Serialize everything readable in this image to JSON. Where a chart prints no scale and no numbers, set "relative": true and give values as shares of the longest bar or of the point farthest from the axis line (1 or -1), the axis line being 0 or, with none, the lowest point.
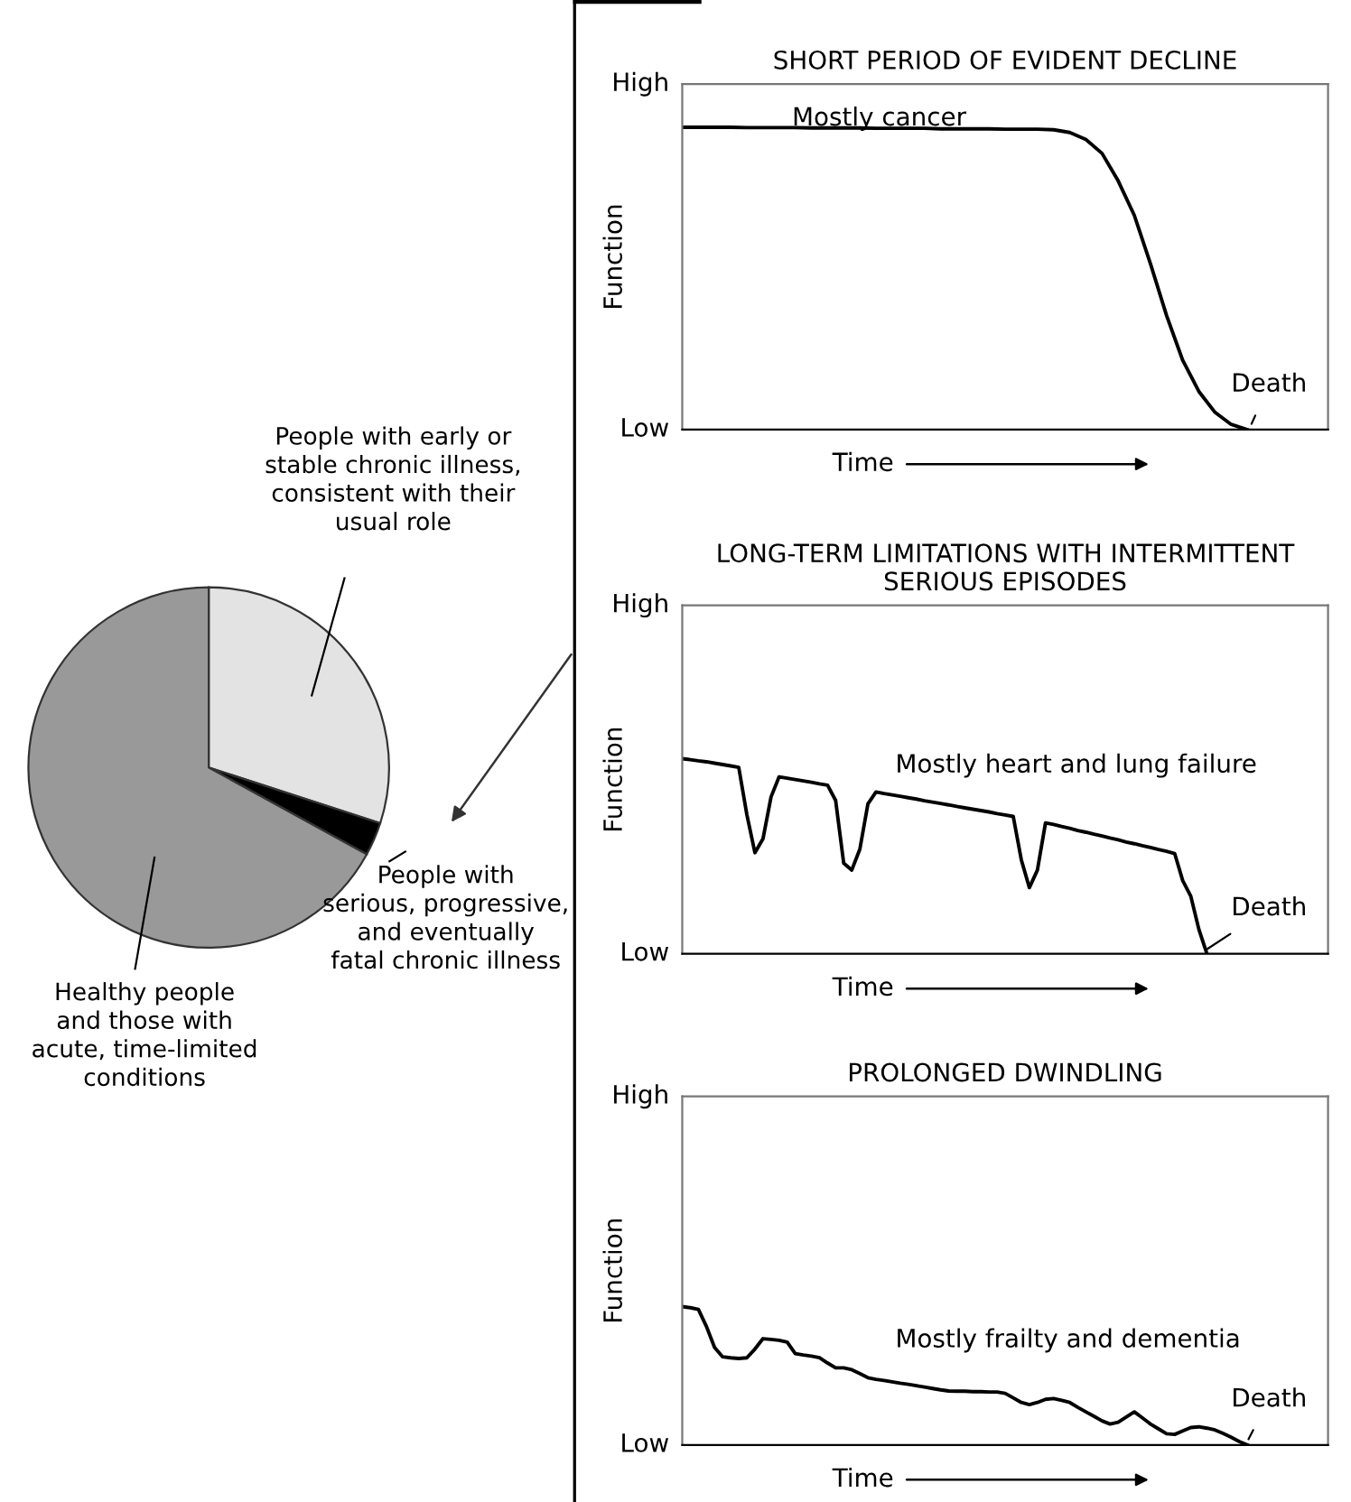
{
  "chart_data": [
    {
      "type": "pie",
      "categories": [
        "People with early or\nstable chronic illness,\nconsistent with their\nusual role",
        "People with\nserious, progressive,\nand eventually\nfatal chronic illness",
        "Healthy people\nand those with\nacute, time-limited\nconditions"
      ],
      "values": [
        30,
        3,
        67
      ],
      "colors": [
        "#e3e3e3",
        "#000000",
        "#999999"
      ]
    },
    {
      "type": "line",
      "title": "SHORT PERIOD OF EVIDENT DECLINE",
      "xlabel": "Time",
      "ylabel": "Function",
      "relative": true,
      "categories": [
        null,
        null,
        null,
        null,
        null,
        null,
        null,
        null,
        null,
        null,
        null,
        null,
        null,
        null,
        null,
        null,
        null,
        null,
        null,
        null,
        null,
        null,
        null,
        null,
        null,
        null,
        null,
        null,
        null,
        null,
        null,
        null,
        null,
        null,
        null,
        null,
        null,
        null,
        null,
        null,
        null
      ],
      "tick_labels": "y",
      "annotations": [
        "Mostly cancer",
        "Death",
        "High",
        "Low"
      ],
      "series": [
        {
          "color": "#000000",
          "values": [
            1,
            1,
            1,
            1,
            0.999,
            0.999,
            0.999,
            0.999,
            0.998,
            0.998,
            0.998,
            0.998,
            0.997,
            0.997,
            0.997,
            0.997,
            0.995,
            0.995,
            0.995,
            0.995,
            0.994,
            0.994,
            0.994,
            0.992,
            0.983,
            0.96,
            0.914,
            0.823,
            0.709,
            0.549,
            0.377,
            0.229,
            0.126,
            0.057,
            0.017,
            0,
            null,
            null,
            null,
            null,
            null
          ]
        }
      ]
    },
    {
      "type": "line",
      "title": "LONG-TERM LIMITATIONS WITH INTERMITTENT\nSERIOUS EPISODES",
      "xlabel": "Time",
      "ylabel": "Function",
      "relative": true,
      "categories": [
        null,
        null,
        null,
        null,
        null,
        null,
        null,
        null,
        null,
        null,
        null,
        null,
        null,
        null,
        null,
        null,
        null,
        null,
        null,
        null,
        null,
        null,
        null,
        null,
        null,
        null,
        null,
        null,
        null,
        null,
        null,
        null,
        null,
        null,
        null,
        null,
        null,
        null,
        null,
        null,
        null,
        null,
        null,
        null,
        null,
        null,
        null,
        null,
        null,
        null,
        null,
        null,
        null,
        null,
        null,
        null,
        null,
        null,
        null,
        null,
        null,
        null,
        null,
        null,
        null,
        null,
        null,
        null,
        null,
        null,
        null,
        null,
        null,
        null,
        null,
        null,
        null,
        null,
        null,
        null,
        null
      ],
      "tick_labels": "y",
      "annotations": [
        "Mostly heart and lung failure",
        "Death",
        "High",
        "Low"
      ],
      "series": [
        {
          "color": "#000000",
          "values": [
            1,
            0.995,
            0.989,
            0.984,
            0.977,
            0.97,
            0.963,
            0.955,
            0.714,
            0.518,
            0.589,
            0.804,
            0.907,
            0.9,
            0.893,
            0.886,
            0.879,
            0.871,
            0.864,
            0.786,
            0.464,
            0.429,
            0.536,
            0.768,
            0.829,
            0.821,
            0.814,
            0.807,
            0.8,
            0.793,
            0.784,
            0.777,
            0.77,
            0.763,
            0.755,
            0.748,
            0.741,
            0.734,
            0.727,
            0.718,
            0.711,
            0.704,
            0.482,
            0.339,
            0.429,
            0.671,
            0.663,
            0.652,
            0.643,
            0.632,
            0.623,
            0.613,
            0.604,
            0.593,
            0.584,
            0.573,
            0.564,
            0.554,
            0.545,
            0.534,
            0.525,
            0.514,
            0.375,
            0.295,
            0.125,
            0,
            null,
            null,
            null,
            null,
            null,
            null,
            null,
            null,
            null,
            null,
            null,
            null,
            null,
            null,
            null
          ]
        }
      ]
    },
    {
      "type": "line",
      "title": "PROLONGED DWINDLING",
      "xlabel": "Time",
      "ylabel": "Function",
      "relative": true,
      "categories": [
        null,
        null,
        null,
        null,
        null,
        null,
        null,
        null,
        null,
        null,
        null,
        null,
        null,
        null,
        null,
        null,
        null,
        null,
        null,
        null,
        null,
        null,
        null,
        null,
        null,
        null,
        null,
        null,
        null,
        null,
        null,
        null,
        null,
        null,
        null,
        null,
        null,
        null,
        null,
        null,
        null,
        null,
        null,
        null,
        null,
        null,
        null,
        null,
        null,
        null,
        null,
        null,
        null,
        null,
        null,
        null,
        null,
        null,
        null,
        null,
        null,
        null,
        null,
        null,
        null,
        null,
        null,
        null,
        null,
        null,
        null,
        null,
        null,
        null,
        null,
        null,
        null,
        null,
        null,
        null,
        null
      ],
      "tick_labels": "y",
      "annotations": [
        "Mostly frailty and dementia",
        "Death",
        "High",
        "Low"
      ],
      "series": [
        {
          "color": "#000000",
          "values": [
            1,
            0.992,
            0.98,
            0.856,
            0.705,
            0.637,
            0.63,
            0.625,
            0.63,
            0.693,
            0.768,
            0.763,
            0.756,
            0.743,
            0.66,
            0.65,
            0.642,
            0.63,
            0.592,
            0.557,
            0.557,
            0.544,
            0.516,
            0.486,
            0.474,
            0.466,
            0.456,
            0.446,
            0.438,
            0.428,
            0.418,
            0.408,
            0.398,
            0.39,
            0.388,
            0.388,
            0.385,
            0.385,
            0.383,
            0.383,
            0.373,
            0.34,
            0.307,
            0.292,
            0.307,
            0.33,
            0.335,
            0.322,
            0.307,
            0.272,
            0.239,
            0.207,
            0.174,
            0.151,
            0.164,
            0.202,
            0.239,
            0.196,
            0.151,
            0.116,
            0.081,
            0.076,
            0.101,
            0.126,
            0.131,
            0.121,
            0.108,
            0.083,
            0.055,
            0.025,
            0,
            null,
            null,
            null,
            null,
            null,
            null,
            null,
            null,
            null,
            null
          ]
        }
      ]
    }
  ]
}
